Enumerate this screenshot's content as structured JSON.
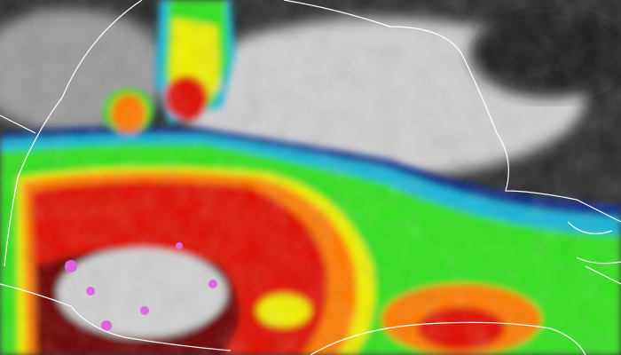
{
  "image": {
    "type": "enhanced infrared satellite imagery",
    "palette": {
      "clear_sky_dark": "#1a1a1a",
      "low_cloud_gray": "#bdbdbd",
      "blue_band": "#0a2a8a",
      "cyan_band": "#19b4d8",
      "green_band": "#33e01a",
      "yellow_band": "#f0f000",
      "orange_band": "#ff7a00",
      "red_band": "#e01000",
      "dark_red_band": "#6a0000",
      "coldest_gray": "#d0d0d0",
      "coldest_magenta": "#e060e0"
    },
    "border_color": "#ffffff"
  }
}
